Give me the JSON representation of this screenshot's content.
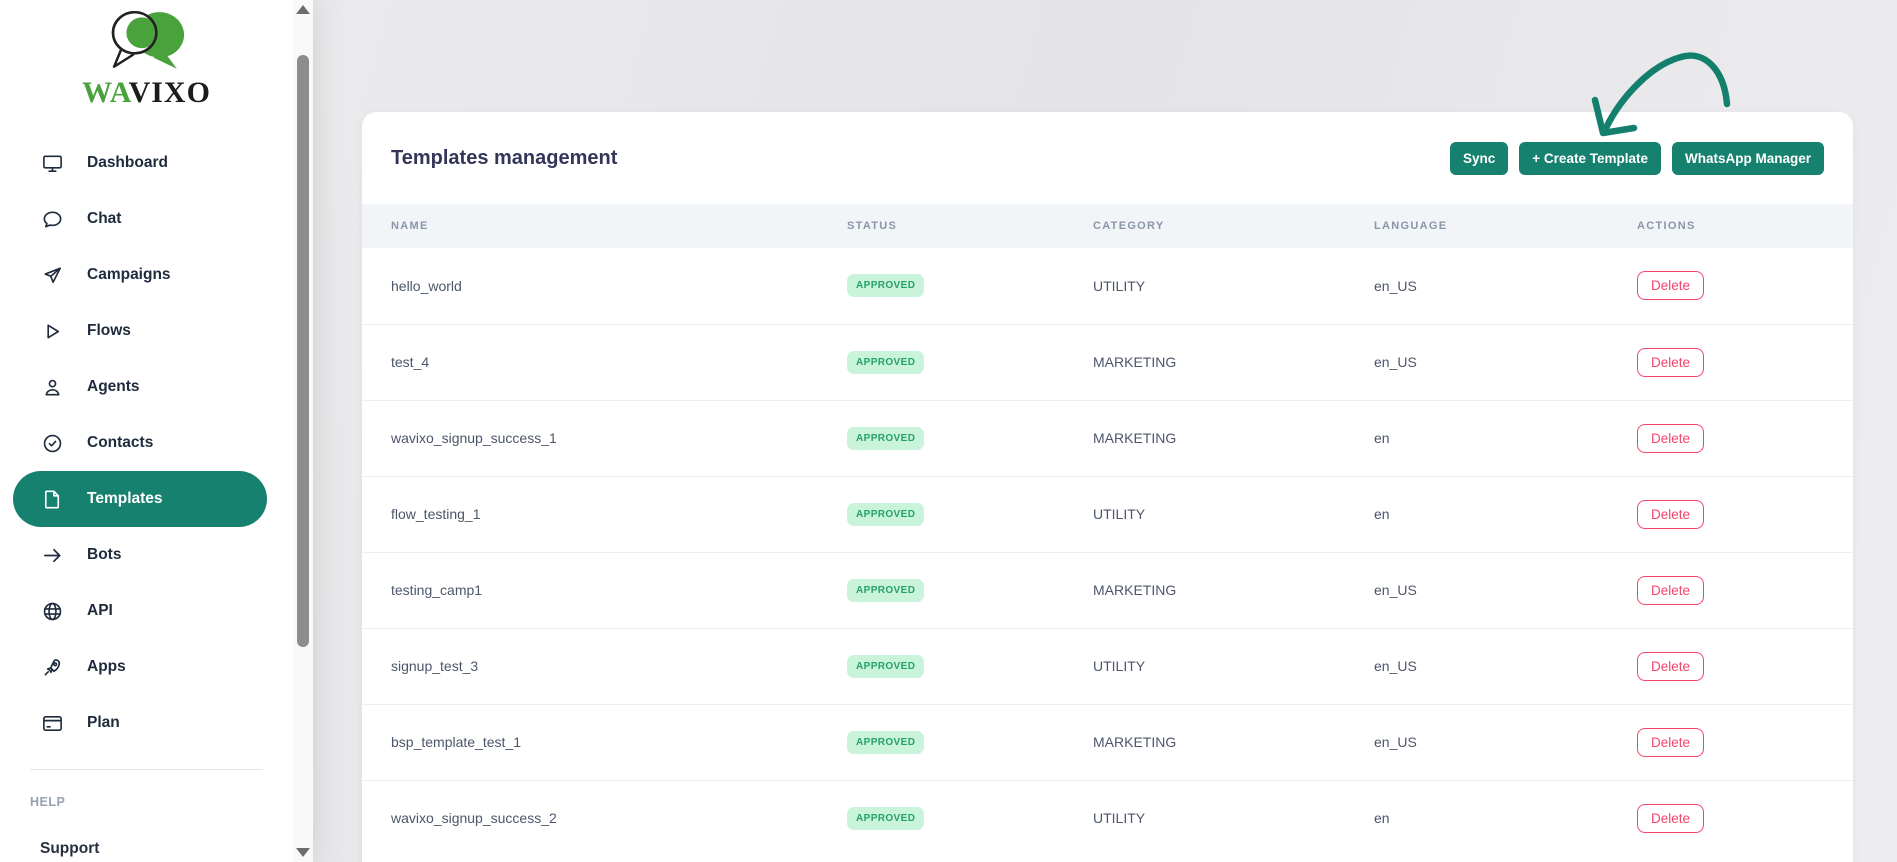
{
  "logo": {
    "wordmark_prefix": "WA",
    "wordmark_suffix": "VIXO"
  },
  "sidebar": {
    "items": [
      {
        "label": "Dashboard",
        "icon": "monitor-icon",
        "active": false
      },
      {
        "label": "Chat",
        "icon": "chat-bubble-icon",
        "active": false
      },
      {
        "label": "Campaigns",
        "icon": "send-icon",
        "active": false
      },
      {
        "label": "Flows",
        "icon": "play-icon",
        "active": false
      },
      {
        "label": "Agents",
        "icon": "person-icon",
        "active": false
      },
      {
        "label": "Contacts",
        "icon": "badge-check-icon",
        "active": false
      },
      {
        "label": "Templates",
        "icon": "file-icon",
        "active": true
      },
      {
        "label": "Bots",
        "icon": "arrow-right-icon",
        "active": false
      },
      {
        "label": "API",
        "icon": "globe-icon",
        "active": false
      },
      {
        "label": "Apps",
        "icon": "rocket-icon",
        "active": false
      },
      {
        "label": "Plan",
        "icon": "credit-card-icon",
        "active": false
      }
    ],
    "help_section": {
      "heading": "HELP",
      "support_label": "Support"
    }
  },
  "header": {
    "title": "Templates management",
    "buttons": [
      {
        "label": "Sync"
      },
      {
        "label": "+ Create Template"
      },
      {
        "label": "WhatsApp Manager"
      }
    ]
  },
  "table": {
    "columns": [
      "NAME",
      "STATUS",
      "CATEGORY",
      "LANGUAGE",
      "ACTIONS"
    ],
    "rows": [
      {
        "name": "hello_world",
        "status": "APPROVED",
        "category": "UTILITY",
        "language": "en_US",
        "action": "Delete"
      },
      {
        "name": "test_4",
        "status": "APPROVED",
        "category": "MARKETING",
        "language": "en_US",
        "action": "Delete"
      },
      {
        "name": "wavixo_signup_success_1",
        "status": "APPROVED",
        "category": "MARKETING",
        "language": "en",
        "action": "Delete"
      },
      {
        "name": "flow_testing_1",
        "status": "APPROVED",
        "category": "UTILITY",
        "language": "en",
        "action": "Delete"
      },
      {
        "name": "testing_camp1",
        "status": "APPROVED",
        "category": "MARKETING",
        "language": "en_US",
        "action": "Delete"
      },
      {
        "name": "signup_test_3",
        "status": "APPROVED",
        "category": "UTILITY",
        "language": "en_US",
        "action": "Delete"
      },
      {
        "name": "bsp_template_test_1",
        "status": "APPROVED",
        "category": "MARKETING",
        "language": "en_US",
        "action": "Delete"
      },
      {
        "name": "wavixo_signup_success_2",
        "status": "APPROVED",
        "category": "UTILITY",
        "language": "en",
        "action": "Delete"
      }
    ]
  },
  "colors": {
    "accent_teal": "#16816F",
    "brand_green": "#4AA23C",
    "badge_bg": "#C9F3DB",
    "badge_text": "#25A268",
    "delete_red": "#F4456B",
    "title_navy": "#343659"
  }
}
